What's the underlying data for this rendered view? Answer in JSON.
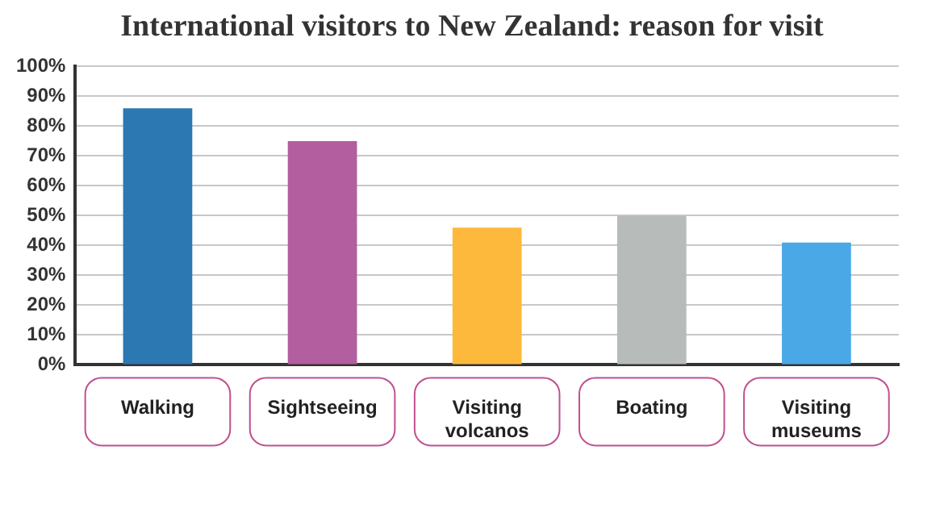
{
  "chart_data": {
    "type": "bar",
    "title": "International visitors to New Zealand: reason for visit",
    "categories": [
      "Walking",
      "Sightseeing",
      "Visiting volcanos",
      "Boating",
      "Visiting museums"
    ],
    "values": [
      86,
      75,
      46,
      50,
      41
    ],
    "colors": [
      "#2b78b3",
      "#b35e9e",
      "#fdb93b",
      "#b7bbba",
      "#4aa8e6"
    ],
    "ylim": [
      0,
      100
    ],
    "yticks": [
      {
        "value": 0,
        "label": "0%"
      },
      {
        "value": 10,
        "label": "10%"
      },
      {
        "value": 20,
        "label": "20%"
      },
      {
        "value": 30,
        "label": "30%"
      },
      {
        "value": 40,
        "label": "40%"
      },
      {
        "value": 50,
        "label": "50%"
      },
      {
        "value": 60,
        "label": "60%"
      },
      {
        "value": 70,
        "label": "70%"
      },
      {
        "value": 80,
        "label": "80%"
      },
      {
        "value": 90,
        "label": "90%"
      },
      {
        "value": 100,
        "label": "100%"
      }
    ],
    "grid": "y",
    "legend": false
  }
}
